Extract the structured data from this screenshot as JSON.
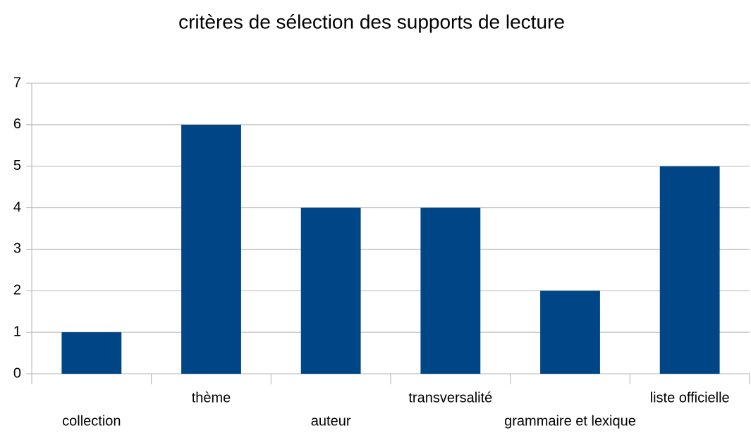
{
  "chart_data": {
    "type": "bar",
    "title": "critères de sélection des supports de lecture",
    "categories": [
      "collection",
      "thème",
      "auteur",
      "transversalité",
      "grammaire et lexique",
      "liste officielle"
    ],
    "values": [
      1,
      6,
      4,
      4,
      2,
      5
    ],
    "color": "#004586",
    "ylim": [
      0,
      7
    ],
    "yticks": [
      0,
      1,
      2,
      3,
      4,
      5,
      6,
      7
    ],
    "grid": true
  }
}
